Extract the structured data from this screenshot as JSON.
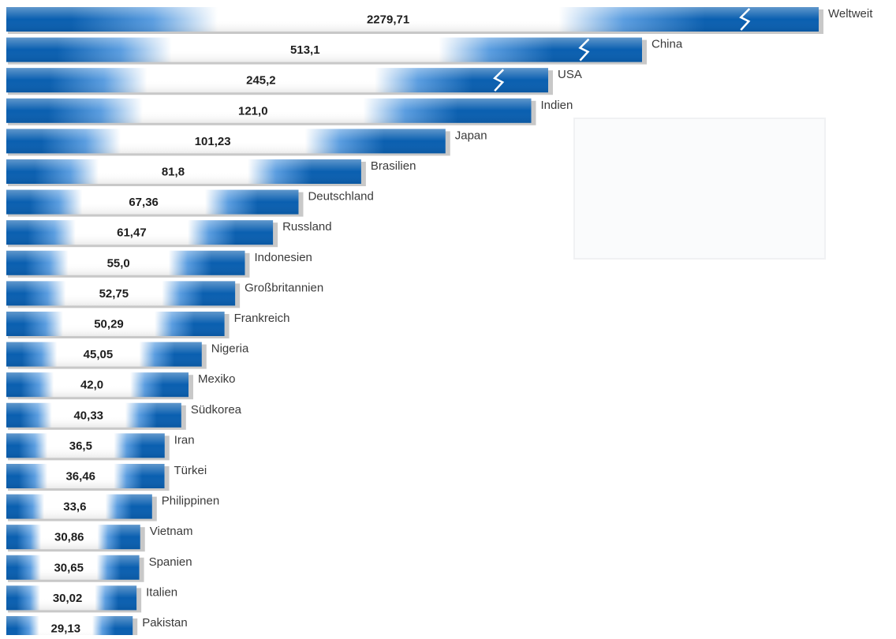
{
  "colors": {
    "bar_dark": "#0a5fb0",
    "bar_mid": "#5a9de0",
    "bar_light": "#ffffff",
    "shadow": "#9a9a9a",
    "break_mark": "#ffffff",
    "text": "#1d1d1d",
    "label": "#3a3a3a"
  },
  "chart_data": {
    "type": "bar",
    "orientation": "horizontal",
    "axis_break": true,
    "categories": [
      "Weltweit",
      "China",
      "USA",
      "Indien",
      "Japan",
      "Brasilien",
      "Deutschland",
      "Russland",
      "Indonesien",
      "Großbritannien",
      "Frankreich",
      "Nigeria",
      "Mexiko",
      "Südkorea",
      "Iran",
      "Türkei",
      "Philippinen",
      "Vietnam",
      "Spanien",
      "Italien",
      "Pakistan"
    ],
    "value_labels": [
      "2279,71",
      "513,1",
      "245,2",
      "121,0",
      "101,23",
      "81,8",
      "67,36",
      "61,47",
      "55,0",
      "52,75",
      "50,29",
      "45,05",
      "42,0",
      "40,33",
      "36,5",
      "36,46",
      "33,6",
      "30,86",
      "30,65",
      "30,02",
      "29,13"
    ],
    "values": [
      2279.71,
      513.1,
      245.2,
      121.0,
      101.23,
      81.8,
      67.36,
      61.47,
      55.0,
      52.75,
      50.29,
      45.05,
      42.0,
      40.33,
      36.5,
      36.46,
      33.6,
      30.86,
      30.65,
      30.02,
      29.13
    ],
    "broken_bars": [
      "Weltweit",
      "China",
      "USA"
    ],
    "title": "",
    "xlabel": "",
    "ylabel": "",
    "grid": false,
    "legend": "none"
  }
}
